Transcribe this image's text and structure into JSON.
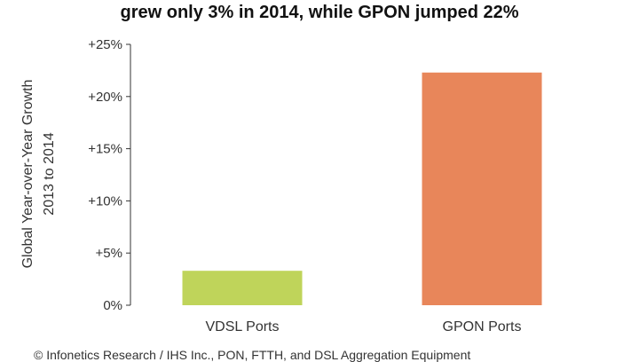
{
  "chart_data": {
    "type": "bar",
    "title": "grew only 3% in 2014, while GPON jumped 22%",
    "categories": [
      "VDSL Ports",
      "GPON Ports"
    ],
    "values": [
      3.3,
      22.3
    ],
    "colors": [
      "#bfd45a",
      "#e8865a"
    ],
    "ylabel_line1": "Global Year-over-Year Growth",
    "ylabel_line2": "2013 to 2014",
    "yticks": [
      "0%",
      "+5%",
      "+10%",
      "+15%",
      "+20%",
      "+25%"
    ],
    "ytick_values": [
      0,
      5,
      10,
      15,
      20,
      25
    ],
    "ylim": [
      0,
      25
    ],
    "grid": false
  },
  "source": "© Infonetics Research / IHS Inc., PON, FTTH, and DSL Aggregation Equipment"
}
